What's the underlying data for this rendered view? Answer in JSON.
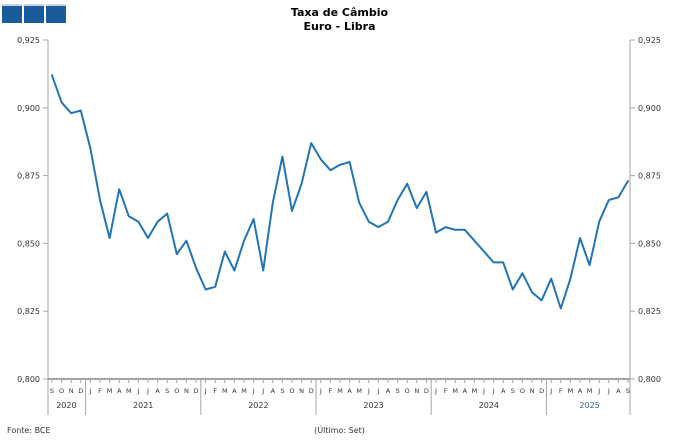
{
  "page": {
    "background": "#ffffff"
  },
  "logo": {
    "color": "#1A5C9B",
    "square_count": 3
  },
  "title": {
    "line1": "Taxa de Câmbio",
    "line2": "Euro - Libra"
  },
  "footer": {
    "source": "Fonte: BCE",
    "last_obs": "(Último: Set)"
  },
  "colors": {
    "line": "#2274B5",
    "axis": "#A6A6A6",
    "baseline": "#4A4A4A",
    "label": "#333333",
    "year_highlight": "#3A66A7"
  },
  "chart_data": {
    "type": "line",
    "title": "Taxa de Câmbio Euro - Libra",
    "xlabel": "",
    "ylabel": "",
    "grid": false,
    "dual_axis": true,
    "legend": "none",
    "ylim": [
      0.8,
      0.925
    ],
    "yticks": [
      "0,925",
      "0,900",
      "0,875",
      "0,850",
      "0,825",
      "0,800"
    ],
    "ytick_values": [
      0.925,
      0.9,
      0.875,
      0.85,
      0.825,
      0.8
    ],
    "x_start": "2020-09",
    "x_end": "2025-09",
    "line_color": "#2274B5",
    "months": [
      "S",
      "O",
      "N",
      "D",
      "J",
      "F",
      "M",
      "A",
      "M",
      "J",
      "J",
      "A",
      "S",
      "O",
      "N",
      "D",
      "J",
      "F",
      "M",
      "A",
      "M",
      "J",
      "J",
      "A",
      "S",
      "O",
      "N",
      "D",
      "J",
      "F",
      "M",
      "A",
      "M",
      "J",
      "J",
      "A",
      "S",
      "O",
      "N",
      "D",
      "J",
      "F",
      "M",
      "A",
      "M",
      "J",
      "J",
      "A",
      "S",
      "O",
      "N",
      "D",
      "J",
      "F",
      "M",
      "A",
      "M",
      "J",
      "J",
      "A",
      "S"
    ],
    "years": [
      {
        "label": "2020",
        "start": 0,
        "end": 3,
        "highlight": false
      },
      {
        "label": "2021",
        "start": 4,
        "end": 15,
        "highlight": false
      },
      {
        "label": "2022",
        "start": 16,
        "end": 27,
        "highlight": false
      },
      {
        "label": "2023",
        "start": 28,
        "end": 39,
        "highlight": false
      },
      {
        "label": "2024",
        "start": 40,
        "end": 51,
        "highlight": false
      },
      {
        "label": "2025",
        "start": 52,
        "end": 60,
        "highlight": true
      }
    ],
    "values": [
      0.912,
      0.902,
      0.898,
      0.899,
      0.885,
      0.866,
      0.852,
      0.87,
      0.86,
      0.858,
      0.852,
      0.858,
      0.861,
      0.846,
      0.851,
      0.841,
      0.833,
      0.834,
      0.847,
      0.84,
      0.851,
      0.859,
      0.84,
      0.865,
      0.882,
      0.862,
      0.872,
      0.887,
      0.881,
      0.877,
      0.879,
      0.88,
      0.865,
      0.858,
      0.856,
      0.858,
      0.866,
      0.872,
      0.863,
      0.869,
      0.854,
      0.856,
      0.855,
      0.855,
      0.851,
      0.847,
      0.843,
      0.843,
      0.833,
      0.839,
      0.832,
      0.829,
      0.837,
      0.826,
      0.837,
      0.852,
      0.842,
      0.858,
      0.866,
      0.867,
      0.873
    ]
  }
}
